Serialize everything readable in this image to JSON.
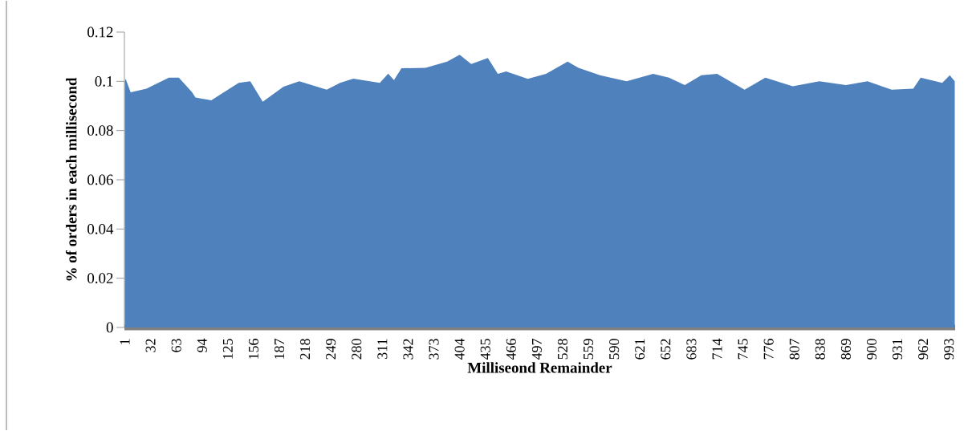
{
  "chart_data": {
    "type": "area",
    "xlabel": "Milliseond Remainder",
    "ylabel": "% of orders in each millisecond",
    "color": "#4f81bd",
    "x": [
      1,
      2,
      8,
      27,
      54,
      66,
      82,
      86,
      105,
      138,
      152,
      167,
      192,
      211,
      244,
      260,
      276,
      308,
      318,
      325,
      334,
      363,
      389,
      404,
      418,
      438,
      450,
      460,
      486,
      508,
      534,
      547,
      573,
      605,
      637,
      656,
      675,
      695,
      714,
      747,
      772,
      805,
      837,
      869,
      895,
      924,
      950,
      959,
      985,
      994,
      1000
    ],
    "values": [
      0.1,
      0.101,
      0.0955,
      0.097,
      0.1015,
      0.1015,
      0.0955,
      0.0934,
      0.0923,
      0.0994,
      0.1,
      0.0917,
      0.0978,
      0.1,
      0.0966,
      0.0994,
      0.1011,
      0.0994,
      0.1031,
      0.1005,
      0.1053,
      0.1055,
      0.108,
      0.1108,
      0.107,
      0.1095,
      0.103,
      0.104,
      0.101,
      0.103,
      0.108,
      0.1055,
      0.1025,
      0.1,
      0.103,
      0.1015,
      0.0985,
      0.1025,
      0.103,
      0.0966,
      0.1015,
      0.098,
      0.1,
      0.0985,
      0.1,
      0.0966,
      0.097,
      0.1015,
      0.0994,
      0.1025,
      0.1
    ],
    "xlim": [
      0.5,
      1000.5
    ],
    "xticks": [
      1,
      32,
      63,
      94,
      125,
      156,
      187,
      218,
      249,
      280,
      311,
      342,
      373,
      404,
      435,
      466,
      497,
      528,
      559,
      590,
      621,
      652,
      683,
      714,
      745,
      776,
      807,
      838,
      869,
      900,
      931,
      962,
      993
    ],
    "ylim": [
      0,
      0.12
    ],
    "yticks": [
      0,
      0.02,
      0.04,
      0.06,
      0.08,
      0.1,
      0.12
    ]
  }
}
